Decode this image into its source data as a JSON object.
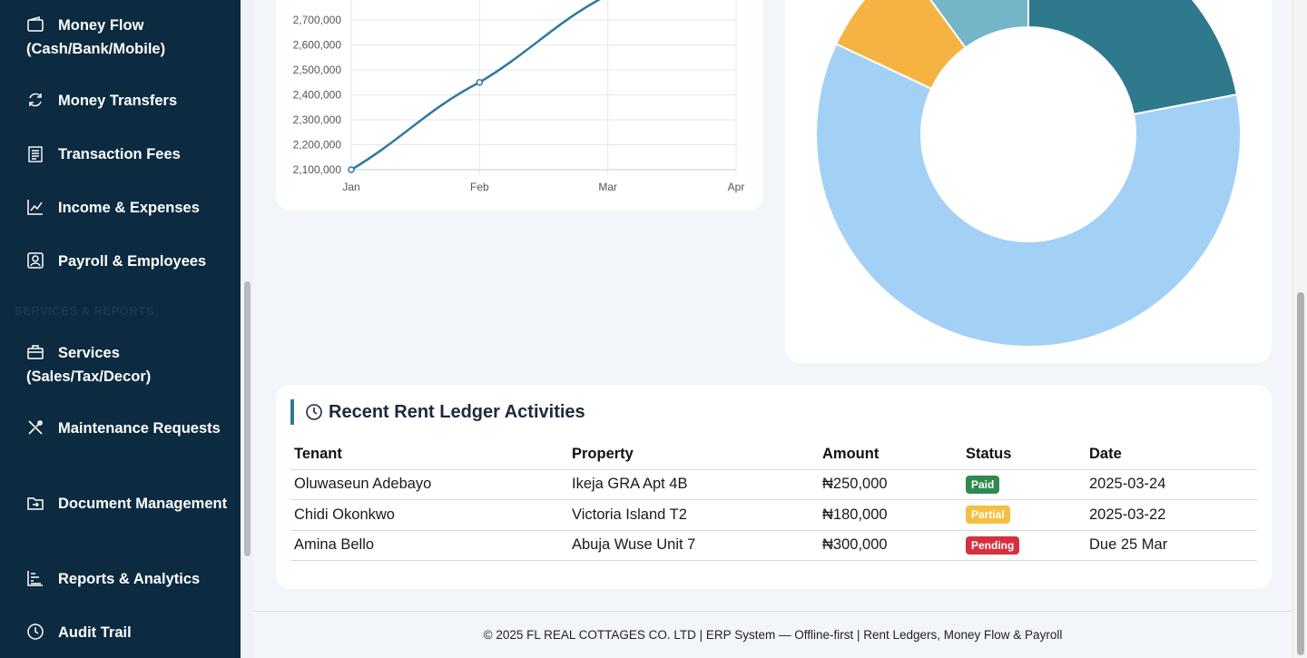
{
  "sidebar": {
    "items": [
      {
        "label": "Money Flow (Cash/Bank/Mobile)",
        "icon": "wallet-icon"
      },
      {
        "label": "Money Transfers",
        "icon": "refresh-icon"
      },
      {
        "label": "Transaction Fees",
        "icon": "receipt-icon"
      },
      {
        "label": "Income & Expenses",
        "icon": "line-chart-icon"
      },
      {
        "label": "Payroll & Employees",
        "icon": "person-card-icon"
      },
      {
        "label": "Services (Sales/Tax/Decor)",
        "icon": "briefcase-icon"
      },
      {
        "label": "Maintenance Requests",
        "icon": "tools-icon"
      },
      {
        "label": "Document Management",
        "icon": "folder-icon"
      },
      {
        "label": "Reports & Analytics",
        "icon": "bar-list-icon"
      },
      {
        "label": "Audit Trail",
        "icon": "clock-icon"
      }
    ],
    "section_label": "SERVICES & REPORTS"
  },
  "chart_data": [
    {
      "type": "line",
      "x": [
        "Jan",
        "Feb",
        "Mar",
        "Apr"
      ],
      "series": [
        {
          "values": [
            2100000,
            2450000,
            2800000,
            null
          ],
          "color": "#2e7a9c"
        }
      ],
      "y_ticks": [
        "2,100,000",
        "2,200,000",
        "2,300,000",
        "2,400,000",
        "2,500,000",
        "2,600,000",
        "2,700,000"
      ],
      "ylim": [
        2100000,
        2700000
      ],
      "grid": true
    },
    {
      "type": "pie",
      "donut": true,
      "slices": [
        {
          "value": 22,
          "color": "#2e7a8c"
        },
        {
          "value": 60,
          "color": "#a3d1f5"
        },
        {
          "value": 8,
          "color": "#f5b342"
        },
        {
          "value": 10,
          "color": "#75b5c8"
        }
      ]
    }
  ],
  "ledger": {
    "title": "Recent Rent Ledger Activities",
    "columns": [
      "Tenant",
      "Property",
      "Amount",
      "Status",
      "Date"
    ],
    "rows": [
      {
        "tenant": "Oluwaseun Adebayo",
        "property": "Ikeja GRA Apt 4B",
        "amount": "₦250,000",
        "status": "Paid",
        "date": "2025-03-24"
      },
      {
        "tenant": "Chidi Okonkwo",
        "property": "Victoria Island T2",
        "amount": "₦180,000",
        "status": "Partial",
        "date": "2025-03-22"
      },
      {
        "tenant": "Amina Bello",
        "property": "Abuja Wuse Unit 7",
        "amount": "₦300,000",
        "status": "Pending",
        "date": "Due 25 Mar"
      }
    ]
  },
  "footer": {
    "text": "© 2025 FL REAL COTTAGES CO. LTD | ERP System — Offline-first | Rent Ledgers, Money Flow & Payroll"
  },
  "colors": {
    "sidebar_bg": "#0c2a40",
    "accent": "#2e7a8c",
    "paid": "#2e8a4e",
    "partial": "#f5c042",
    "pending": "#d6303e"
  }
}
